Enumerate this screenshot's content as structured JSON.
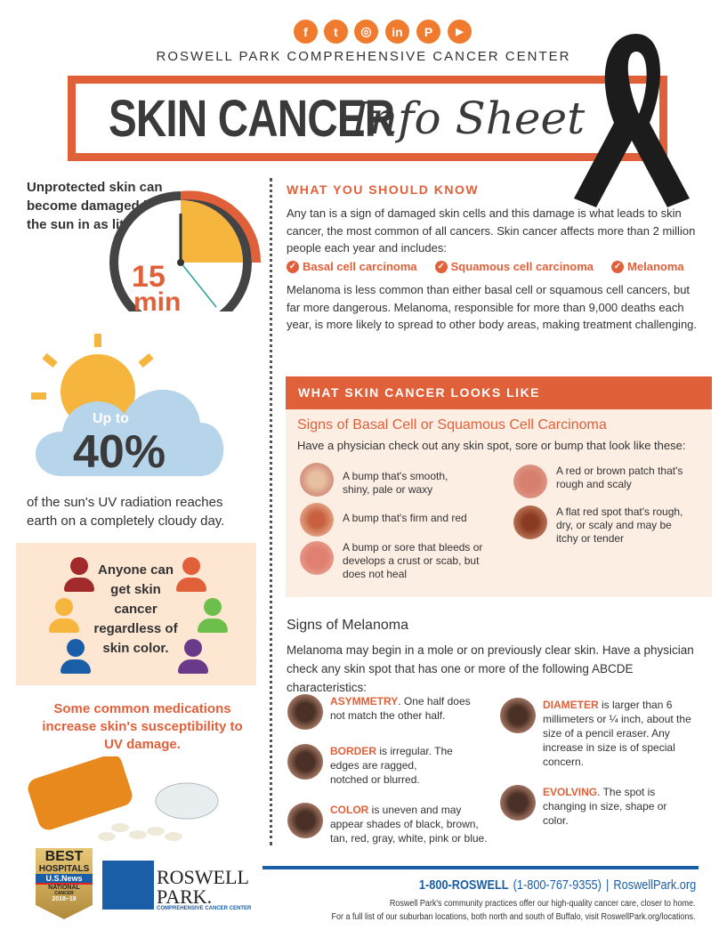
{
  "social": [
    {
      "icon": "facebook-icon",
      "glyph": "f"
    },
    {
      "icon": "twitter-icon",
      "glyph": "t"
    },
    {
      "icon": "instagram-icon",
      "glyph": "◎"
    },
    {
      "icon": "linkedin-icon",
      "glyph": "in"
    },
    {
      "icon": "pinterest-icon",
      "glyph": "P"
    },
    {
      "icon": "youtube-icon",
      "glyph": "▶"
    }
  ],
  "header": {
    "org": "ROSWELL PARK COMPREHENSIVE CANCER CENTER",
    "title_main": "SKIN CANCER",
    "title_script": "Info Sheet"
  },
  "left": {
    "sun_intro": "Unprotected skin can become damaged by the sun in as little as",
    "clock_number": "15",
    "clock_unit": "min",
    "cloud_upto": "Up to",
    "cloud_pct": "40%",
    "cloud_caption": "of the sun's UV radiation reaches earth on a completely cloudy day.",
    "people_text": "Anyone can get skin cancer regardless of skin color.",
    "meds_text": "Some common medications increase skin's susceptibility to UV damage.",
    "badge": {
      "best": "BEST",
      "hospitals": "HOSPITALS",
      "usnews": "U.S.News",
      "national": "NATIONAL",
      "cancer": "CANCER",
      "years": "2018–19"
    },
    "logo": {
      "line1": "ROSWELL",
      "line2": "PARK.",
      "tagline": "COMPREHENSIVE CANCER CENTER"
    }
  },
  "know": {
    "heading": "WHAT YOU SHOULD KNOW",
    "p1": "Any tan is a sign of damaged skin cells and this damage is what leads to skin cancer, the most common of all cancers. Skin cancer affects more than 2 million people each year and includes:",
    "types": [
      "Basal cell carcinoma",
      "Squamous cell carcinoma",
      "Melanoma"
    ],
    "p2": "Melanoma is less common than either basal cell or squamous cell cancers, but far more dangerous. Melanoma, responsible for more than 9,000 deaths each year, is more likely to spread to other body areas, making treatment challenging."
  },
  "looks": {
    "heading": "WHAT SKIN CANCER LOOKS LIKE",
    "sub": "Signs of Basal Cell or Squamous Cell Carcinoma",
    "intro": "Have a physician check out any skin spot, sore or bump that look like these:",
    "signs": [
      "A bump that's smooth, shiny, pale or waxy",
      "A bump that's firm and red",
      "A bump or sore that bleeds or develops a crust or scab, but does not heal",
      "A red or brown patch that's rough and scaly",
      "A flat red spot that's rough, dry, or scaly and may be itchy or tender"
    ]
  },
  "melanoma": {
    "sub": "Signs of Melanoma",
    "intro": "Melanoma may begin in a mole or on previously clear skin. Have a physician check any skin spot that has one or more of the following ABCDE characteristics:",
    "items": [
      {
        "term": "ASYMMETRY",
        "desc": ". One half does not match the other half."
      },
      {
        "term": "BORDER",
        "desc": " is irregular. The edges are ragged, notched or blurred."
      },
      {
        "term": "COLOR",
        "desc": " is uneven and may appear shades of black, brown, tan, red, gray, white, pink or blue."
      },
      {
        "term": "DIAMETER",
        "desc": " is larger than 6 millimeters or ¼ inch, about the size of a pencil eraser. Any increase in size is of special concern."
      },
      {
        "term": "EVOLVING",
        "desc": ". The spot is changing in size, shape or color."
      }
    ]
  },
  "footer": {
    "phone": "1-800-ROSWELL",
    "phone_num": "(1-800-767-9355)",
    "sep": "|",
    "site": "RoswellPark.org",
    "line1": "Roswell Park's community practices offer our high-quality cancer care, closer to home.",
    "line2": "For a full list of our suburban locations, both north and south of Buffalo, visit RoswellPark.org/locations."
  },
  "colors": {
    "accent": "#e0603a",
    "blue": "#1a5ea8",
    "peach": "#fdeee4"
  }
}
